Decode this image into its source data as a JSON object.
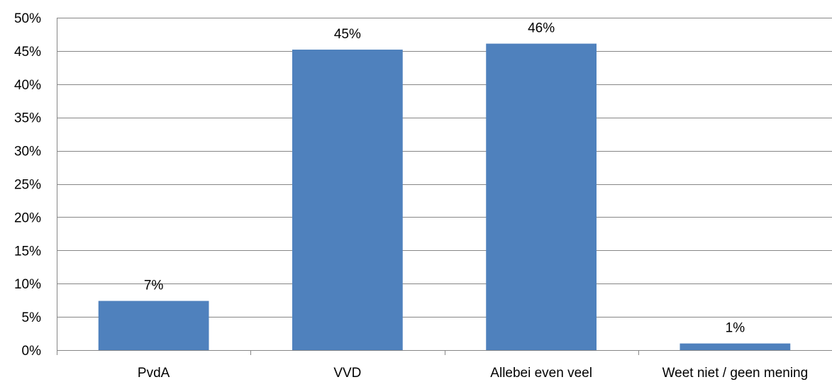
{
  "chart_data": {
    "type": "bar",
    "categories": [
      "PvdA",
      "VVD",
      "Allebei even veel",
      "Weet niet / geen mening"
    ],
    "values": [
      7.4,
      45.2,
      46.1,
      1.0
    ],
    "data_labels": [
      "7%",
      "45%",
      "46%",
      "1%"
    ],
    "y_tick_labels": [
      "0%",
      "5%",
      "10%",
      "15%",
      "20%",
      "25%",
      "30%",
      "35%",
      "40%",
      "45%",
      "50%"
    ],
    "ylim": [
      0,
      50
    ],
    "y_tick_step": 5,
    "grid": true,
    "legend": "none",
    "bar_color": "#4F81BD"
  }
}
